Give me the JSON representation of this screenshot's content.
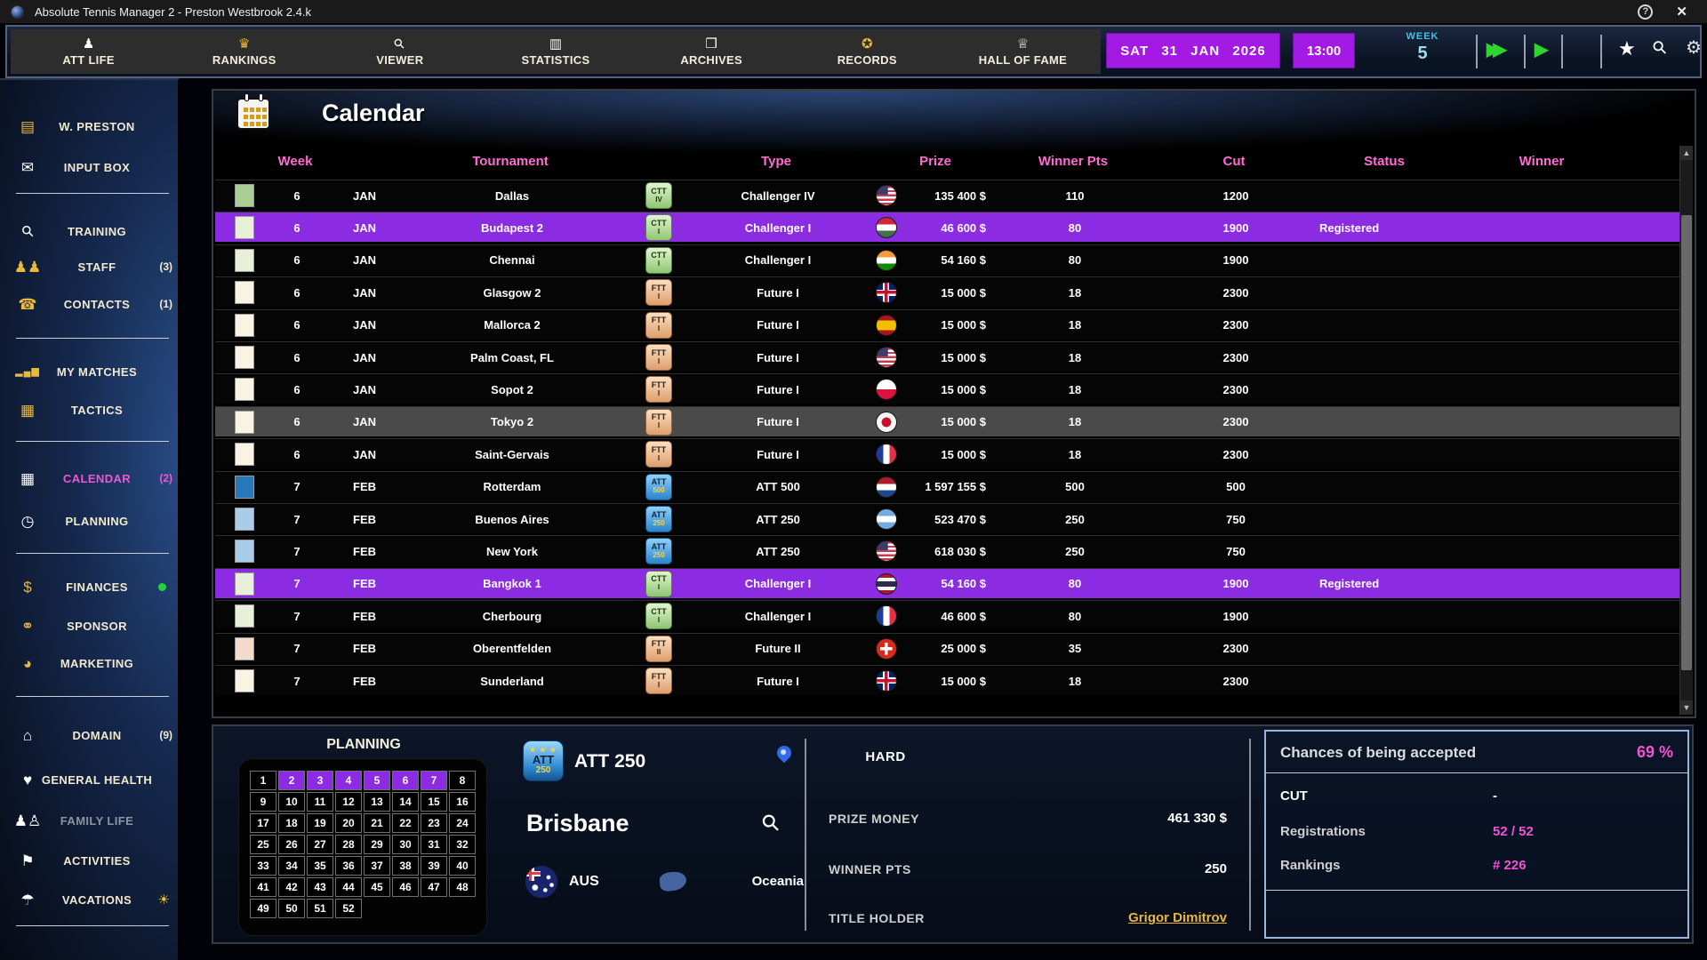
{
  "title_bar": {
    "title": "Absolute Tennis Manager 2  -  Preston Westbrook  2.4.k"
  },
  "icons": {
    "att-life": "♟",
    "rankings": "♛",
    "viewer": "⚲",
    "statistics": "▥",
    "archives": "❒",
    "records": "✪",
    "hall-of-fame": "♕",
    "fast-forward": "▶▶",
    "play": "▶",
    "favorites": "★",
    "search": "⚲",
    "settings": "⚙",
    "help": "?",
    "close": "✕",
    "scroll-up": "▲",
    "scroll-down": "▼",
    "sun": "☀",
    "w-preston": "▤",
    "input-box": "✉",
    "training": "⚲",
    "staff": "♟♟",
    "contacts": "☎",
    "my-matches": "▂▄▆",
    "tactics": "▦",
    "calendar": "▦",
    "planning": "◷",
    "finances": "$",
    "sponsor": "⚭",
    "marketing": "◕",
    "domain": "⌂",
    "general-health": "♥",
    "family-life": "♟♙",
    "activities": "⚑",
    "vacations": "☂"
  },
  "nav": {
    "items": [
      {
        "label": "ATT LIFE",
        "icon": "att-life"
      },
      {
        "label": "RANKINGS",
        "icon": "rankings"
      },
      {
        "label": "VIEWER",
        "icon": "viewer"
      },
      {
        "label": "STATISTICS",
        "icon": "statistics"
      },
      {
        "label": "ARCHIVES",
        "icon": "archives"
      },
      {
        "label": "RECORDS",
        "icon": "records"
      },
      {
        "label": "HALL OF FAME",
        "icon": "hall-of-fame"
      }
    ],
    "date": "SAT 31 JAN 2026",
    "time": "13:00",
    "week_label": "WEEK",
    "week_number": "5"
  },
  "sidebar": {
    "items": [
      {
        "label": "W. PRESTON",
        "icon": "w-preston"
      },
      {
        "label": "INPUT BOX",
        "icon": "input-box"
      },
      {
        "label": "TRAINING",
        "icon": "training"
      },
      {
        "label": "STAFF",
        "icon": "staff",
        "count": "(3)"
      },
      {
        "label": "CONTACTS",
        "icon": "contacts",
        "count": "(1)"
      },
      {
        "label": "MY MATCHES",
        "icon": "my-matches"
      },
      {
        "label": "TACTICS",
        "icon": "tactics"
      },
      {
        "label": "CALENDAR",
        "icon": "calendar",
        "count": "(2)",
        "state": "active"
      },
      {
        "label": "PLANNING",
        "icon": "planning"
      },
      {
        "label": "FINANCES",
        "icon": "finances",
        "extra": "green-dot"
      },
      {
        "label": "SPONSOR",
        "icon": "sponsor"
      },
      {
        "label": "MARKETING",
        "icon": "marketing"
      },
      {
        "label": "DOMAIN",
        "icon": "domain",
        "count": "(9)"
      },
      {
        "label": "GENERAL HEALTH",
        "icon": "general-health"
      },
      {
        "label": "FAMILY LIFE",
        "icon": "family-life",
        "state": "disabled"
      },
      {
        "label": "ACTIVITIES",
        "icon": "activities"
      },
      {
        "label": "VACATIONS",
        "icon": "vacations",
        "extra": "sun"
      }
    ]
  },
  "calendar": {
    "title": "Calendar",
    "columns": [
      "Week",
      "Tournament",
      "Type",
      "Prize",
      "Winner Pts",
      "Cut",
      "Status",
      "Winner"
    ],
    "rows": [
      {
        "week": "6",
        "month": "JAN",
        "name": "Dallas",
        "badge": {
          "l1": "CTT",
          "l2": "IV",
          "color": "green"
        },
        "type": "Challenger IV",
        "flag": "usa",
        "prize": "135 400 $",
        "winner_pts": "110",
        "cut": "1200",
        "status": "",
        "winner": "",
        "chip": "#a9cf96",
        "state": ""
      },
      {
        "week": "6",
        "month": "JAN",
        "name": "Budapest 2",
        "badge": {
          "l1": "CTT",
          "l2": "I",
          "color": "green"
        },
        "type": "Challenger I",
        "flag": "hun",
        "prize": "46 600 $",
        "winner_pts": "80",
        "cut": "1900",
        "status": "Registered",
        "winner": "",
        "chip": "#e9efd9",
        "state": "sel"
      },
      {
        "week": "6",
        "month": "JAN",
        "name": "Chennai",
        "badge": {
          "l1": "CTT",
          "l2": "I",
          "color": "green"
        },
        "type": "Challenger I",
        "flag": "ind",
        "prize": "54 160 $",
        "winner_pts": "80",
        "cut": "1900",
        "status": "",
        "winner": "",
        "chip": "#e9efd9",
        "state": ""
      },
      {
        "week": "6",
        "month": "JAN",
        "name": "Glasgow 2",
        "badge": {
          "l1": "FTT",
          "l2": "I",
          "color": "bronze"
        },
        "type": "Future I",
        "flag": "gbr",
        "prize": "15 000 $",
        "winner_pts": "18",
        "cut": "2300",
        "status": "",
        "winner": "",
        "chip": "#faf3e3",
        "state": ""
      },
      {
        "week": "6",
        "month": "JAN",
        "name": "Mallorca 2",
        "badge": {
          "l1": "FTT",
          "l2": "I",
          "color": "bronze"
        },
        "type": "Future I",
        "flag": "esp",
        "prize": "15 000 $",
        "winner_pts": "18",
        "cut": "2300",
        "status": "",
        "winner": "",
        "chip": "#faf3e3",
        "state": ""
      },
      {
        "week": "6",
        "month": "JAN",
        "name": "Palm Coast, FL",
        "badge": {
          "l1": "FTT",
          "l2": "I",
          "color": "bronze"
        },
        "type": "Future I",
        "flag": "usa",
        "prize": "15 000 $",
        "winner_pts": "18",
        "cut": "2300",
        "status": "",
        "winner": "",
        "chip": "#faf3e3",
        "state": ""
      },
      {
        "week": "6",
        "month": "JAN",
        "name": "Sopot 2",
        "badge": {
          "l1": "FTT",
          "l2": "I",
          "color": "bronze"
        },
        "type": "Future I",
        "flag": "pol",
        "prize": "15 000 $",
        "winner_pts": "18",
        "cut": "2300",
        "status": "",
        "winner": "",
        "chip": "#faf3e3",
        "state": ""
      },
      {
        "week": "6",
        "month": "JAN",
        "name": "Tokyo 2",
        "badge": {
          "l1": "FTT",
          "l2": "I",
          "color": "bronze"
        },
        "type": "Future I",
        "flag": "jpn",
        "prize": "15 000 $",
        "winner_pts": "18",
        "cut": "2300",
        "status": "",
        "winner": "",
        "chip": "#faf3e3",
        "state": "hov"
      },
      {
        "week": "6",
        "month": "JAN",
        "name": "Saint-Gervais",
        "badge": {
          "l1": "FTT",
          "l2": "I",
          "color": "bronze"
        },
        "type": "Future I",
        "flag": "fra",
        "prize": "15 000 $",
        "winner_pts": "18",
        "cut": "2300",
        "status": "",
        "winner": "",
        "chip": "#faf3e3",
        "state": ""
      },
      {
        "week": "7",
        "month": "FEB",
        "name": "Rotterdam",
        "badge": {
          "l1": "ATT",
          "l2": "500",
          "color": "blue"
        },
        "type": "ATT 500",
        "flag": "ned",
        "prize": "1 597 155 $",
        "winner_pts": "500",
        "cut": "500",
        "status": "",
        "winner": "",
        "chip": "#2878b8",
        "state": ""
      },
      {
        "week": "7",
        "month": "FEB",
        "name": "Buenos Aires",
        "badge": {
          "l1": "ATT",
          "l2": "250",
          "color": "blue"
        },
        "type": "ATT 250",
        "flag": "arg",
        "prize": "523 470 $",
        "winner_pts": "250",
        "cut": "750",
        "status": "",
        "winner": "",
        "chip": "#a9cce9",
        "state": ""
      },
      {
        "week": "7",
        "month": "FEB",
        "name": "New York",
        "badge": {
          "l1": "ATT",
          "l2": "250",
          "color": "blue"
        },
        "type": "ATT 250",
        "flag": "usa",
        "prize": "618 030 $",
        "winner_pts": "250",
        "cut": "750",
        "status": "",
        "winner": "",
        "chip": "#a9cce9",
        "state": ""
      },
      {
        "week": "7",
        "month": "FEB",
        "name": "Bangkok 1",
        "badge": {
          "l1": "CTT",
          "l2": "I",
          "color": "green"
        },
        "type": "Challenger I",
        "flag": "tha",
        "prize": "54 160 $",
        "winner_pts": "80",
        "cut": "1900",
        "status": "Registered",
        "winner": "",
        "chip": "#e9efd9",
        "state": "sel"
      },
      {
        "week": "7",
        "month": "FEB",
        "name": "Cherbourg",
        "badge": {
          "l1": "CTT",
          "l2": "I",
          "color": "green"
        },
        "type": "Challenger I",
        "flag": "fra",
        "prize": "46 600 $",
        "winner_pts": "80",
        "cut": "1900",
        "status": "",
        "winner": "",
        "chip": "#e9efd9",
        "state": ""
      },
      {
        "week": "7",
        "month": "FEB",
        "name": "Oberentfelden",
        "badge": {
          "l1": "FTT",
          "l2": "II",
          "color": "bronze"
        },
        "type": "Future II",
        "flag": "sui",
        "prize": "25 000 $",
        "winner_pts": "35",
        "cut": "2300",
        "status": "",
        "winner": "",
        "chip": "#f2dbcb",
        "state": ""
      },
      {
        "week": "7",
        "month": "FEB",
        "name": "Sunderland",
        "badge": {
          "l1": "FTT",
          "l2": "I",
          "color": "bronze"
        },
        "type": "Future I",
        "flag": "gbr",
        "prize": "15 000 $",
        "winner_pts": "18",
        "cut": "2300",
        "status": "",
        "winner": "",
        "chip": "#faf3e3",
        "state": ""
      }
    ]
  },
  "planning": {
    "title": "PLANNING",
    "total_weeks": 52,
    "highlighted_weeks": [
      2,
      3,
      4,
      5,
      6,
      7
    ]
  },
  "tournament_panel": {
    "category": "ATT 250",
    "badge": {
      "l1": "ATT",
      "l2": "250"
    },
    "city": "Brisbane",
    "country_code": "AUS",
    "continent": "Oceania",
    "surface": "HARD",
    "prize_money_label": "PRIZE MONEY",
    "prize_money": "461 330 $",
    "winner_pts_label": "WINNER PTS",
    "winner_pts": "250",
    "title_holder_label": "TITLE HOLDER",
    "title_holder": "Grigor Dimitrov"
  },
  "acceptance_panel": {
    "title": "Chances of being accepted",
    "chance": "69 %",
    "cut_label": "CUT",
    "cut_value": "-",
    "registrations_label": "Registrations",
    "registrations_value": "52 / 52",
    "rankings_label": "Rankings",
    "rankings_value": "# 226"
  },
  "colors": {
    "selection_purple": "#8b2be2",
    "date_purple": "#a21ae4",
    "header_pink": "#ff6ad5",
    "value_magenta": "#f353d6",
    "gold": "#e9b83c",
    "cyan": "#3fc4de",
    "green": "#2ed52e"
  }
}
